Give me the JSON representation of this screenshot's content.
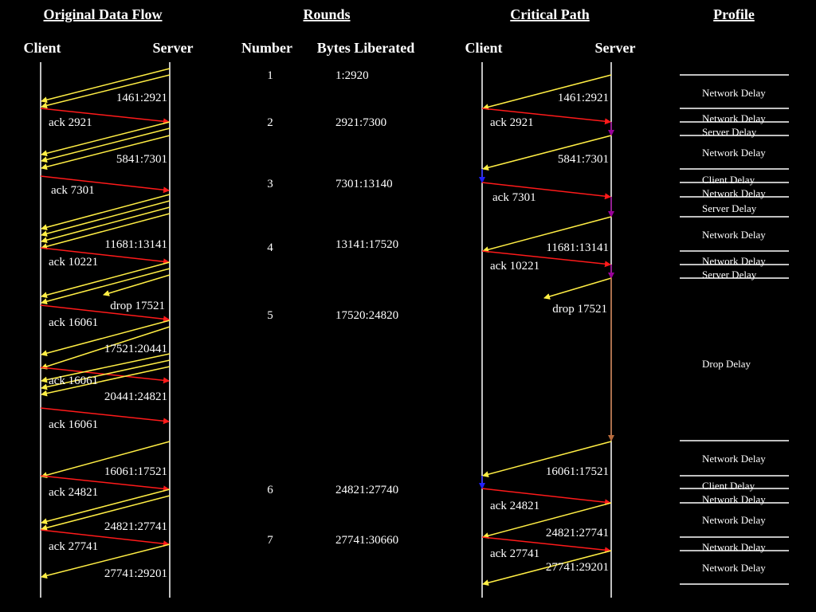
{
  "headers": {
    "original": "Original Data Flow",
    "rounds": "Rounds",
    "critical": "Critical Path",
    "profile": "Profile"
  },
  "subheaders": {
    "client_left": "Client",
    "server_left": "Server",
    "number": "Number",
    "bytes": "Bytes Liberated",
    "client_right": "Client",
    "server_right": "Server"
  },
  "colors": {
    "data": "#ffee44",
    "ack": "#ff1a1a",
    "server_delay": "#990099",
    "client_delay": "#2222ff",
    "drop_delay": "#b86b3c",
    "axis": "#ffffff"
  },
  "left_labels": [
    "1461:2921",
    "ack 2921",
    "5841:7301",
    "ack 7301",
    "11681:13141",
    "ack 10221",
    "drop 17521",
    "ack 16061",
    "17521:20441",
    "ack 16061",
    "20441:24821",
    "ack 16061",
    "16061:17521",
    "ack 24821",
    "24821:27741",
    "ack 27741",
    "27741:29201"
  ],
  "rounds": [
    {
      "number": "1",
      "bytes": "1:2920"
    },
    {
      "number": "2",
      "bytes": "2921:7300"
    },
    {
      "number": "3",
      "bytes": "7301:13140"
    },
    {
      "number": "4",
      "bytes": "13141:17520"
    },
    {
      "number": "5",
      "bytes": "17520:24820"
    },
    {
      "number": "6",
      "bytes": "24821:27740"
    },
    {
      "number": "7",
      "bytes": "27741:30660"
    }
  ],
  "right_labels": [
    "1461:2921",
    "ack 2921",
    "5841:7301",
    "ack 7301",
    "11681:13141",
    "ack 10221",
    "drop 17521",
    "16061:17521",
    "ack 24821",
    "24821:27741",
    "ack 27741",
    "27741:29201"
  ],
  "profile": [
    "Network Delay",
    "Network Delay",
    "Server Delay",
    "Network Delay",
    "Client Delay",
    "Network Delay",
    "Server Delay",
    "Network Delay",
    "Network Delay",
    "Server Delay",
    "Drop Delay",
    "Network Delay",
    "Client Delay",
    "Network Delay",
    "Network Delay",
    "Network Delay",
    "Network Delay"
  ]
}
